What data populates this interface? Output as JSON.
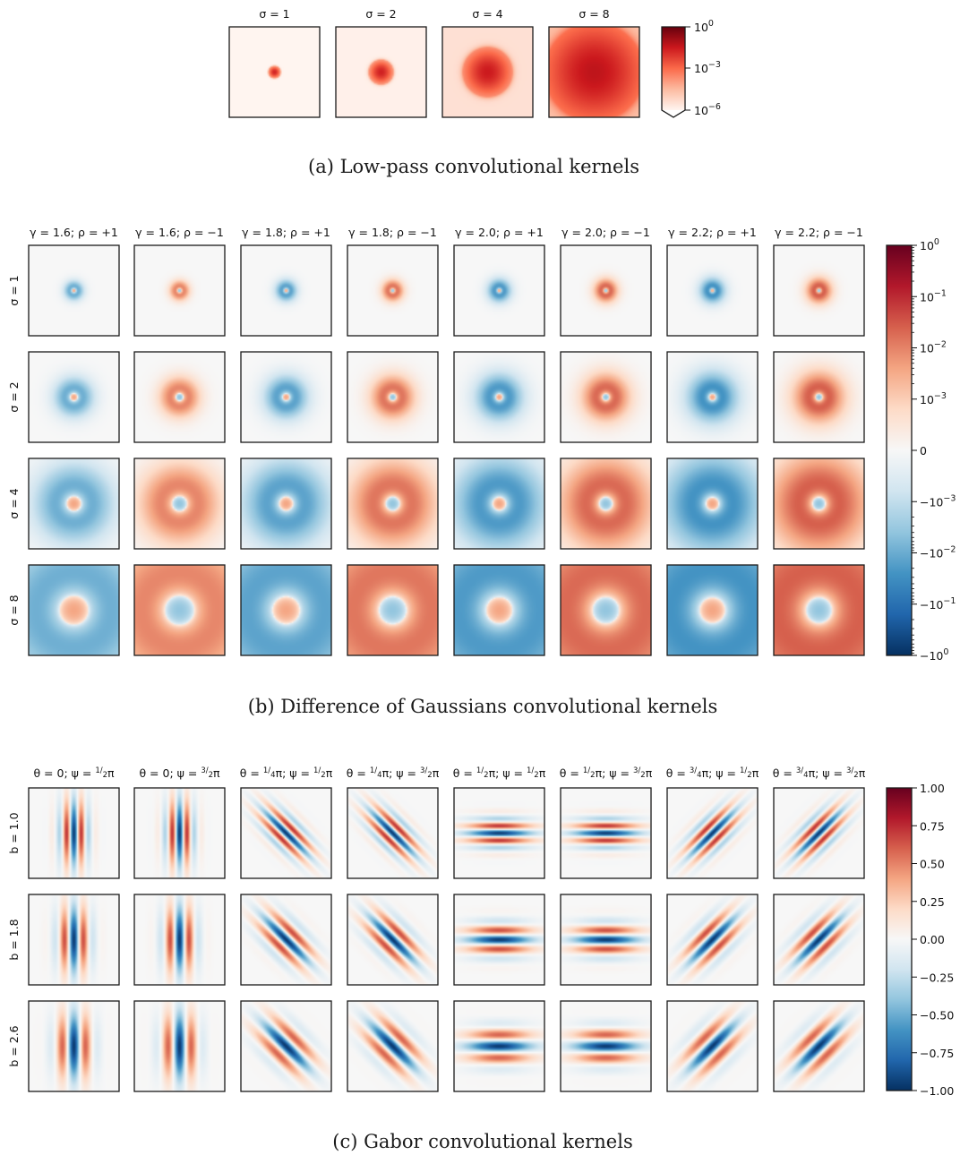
{
  "colors": {
    "reds_max": "#67000d",
    "neutral": "#f7f7f7",
    "blue_max": "#053061"
  },
  "panel_a": {
    "caption": "(a) Low-pass convolutional kernels",
    "titles": [
      "σ = 1",
      "σ = 2",
      "σ = 4",
      "σ = 8"
    ],
    "sigmas": [
      1,
      2,
      4,
      8
    ],
    "colorbar_ticks": [
      {
        "base": "10",
        "exp": "0",
        "value": 1
      },
      {
        "base": "10",
        "exp": "−3",
        "value": 0.001
      },
      {
        "base": "10",
        "exp": "−6",
        "value": 1e-06
      }
    ]
  },
  "panel_b": {
    "caption": "(b) Difference of Gaussians convolutional kernels",
    "col_titles": [
      "γ = 1.6;  ρ = +1",
      "γ = 1.6;  ρ = −1",
      "γ = 1.8;  ρ = +1",
      "γ = 1.8;  ρ = −1",
      "γ = 2.0;  ρ = +1",
      "γ = 2.0;  ρ = −1",
      "γ = 2.2;  ρ = +1",
      "γ = 2.2;  ρ = −1"
    ],
    "row_labels": [
      "σ = 1",
      "σ = 2",
      "σ = 4",
      "σ = 8"
    ],
    "gammas": [
      1.6,
      1.6,
      1.8,
      1.8,
      2.0,
      2.0,
      2.2,
      2.2
    ],
    "rhos": [
      1,
      -1,
      1,
      -1,
      1,
      -1,
      1,
      -1
    ],
    "sigmas": [
      1,
      2,
      4,
      8
    ],
    "colorbar_ticks": [
      {
        "base": "10",
        "exp": "0",
        "value": 1
      },
      {
        "base": "10",
        "exp": "−1",
        "value": 0.1
      },
      {
        "base": "10",
        "exp": "−2",
        "value": 0.01
      },
      {
        "base": "10",
        "exp": "−3",
        "value": 0.001
      },
      {
        "base": "0",
        "exp": "",
        "value": 0
      },
      {
        "base": "−10",
        "exp": "−3",
        "value": -0.001
      },
      {
        "base": "−10",
        "exp": "−2",
        "value": -0.01
      },
      {
        "base": "−10",
        "exp": "−1",
        "value": -0.1
      },
      {
        "base": "−10",
        "exp": "0",
        "value": -1
      }
    ]
  },
  "panel_c": {
    "caption": "(c) Gabor convolutional kernels",
    "col_titles": [
      {
        "theta": "θ = 0;",
        "psi_num": "1",
        "psi_den": "2"
      },
      {
        "theta": "θ = 0;",
        "psi_num": "3",
        "psi_den": "2"
      },
      {
        "theta_num": "1",
        "theta_den": "4",
        "psi_num": "1",
        "psi_den": "2"
      },
      {
        "theta_num": "1",
        "theta_den": "4",
        "psi_num": "3",
        "psi_den": "2"
      },
      {
        "theta_num": "1",
        "theta_den": "2",
        "psi_num": "1",
        "psi_den": "2"
      },
      {
        "theta_num": "1",
        "theta_den": "2",
        "psi_num": "3",
        "psi_den": "2"
      },
      {
        "theta_num": "3",
        "theta_den": "4",
        "psi_num": "1",
        "psi_den": "2"
      },
      {
        "theta_num": "3",
        "theta_den": "4",
        "psi_num": "3",
        "psi_den": "2"
      }
    ],
    "thetas": [
      0,
      0,
      0.25,
      0.25,
      0.5,
      0.5,
      0.75,
      0.75
    ],
    "psis": [
      0.5,
      1.5,
      0.5,
      1.5,
      0.5,
      1.5,
      0.5,
      1.5
    ],
    "row_labels": [
      "b = 1.0",
      "b = 1.8",
      "b = 2.6"
    ],
    "bandwidths": [
      1.0,
      1.8,
      2.6
    ],
    "colorbar_ticks": [
      "1.00",
      "0.75",
      "0.50",
      "0.25",
      "0.00",
      "−0.25",
      "−0.50",
      "−0.75",
      "−1.00"
    ]
  }
}
